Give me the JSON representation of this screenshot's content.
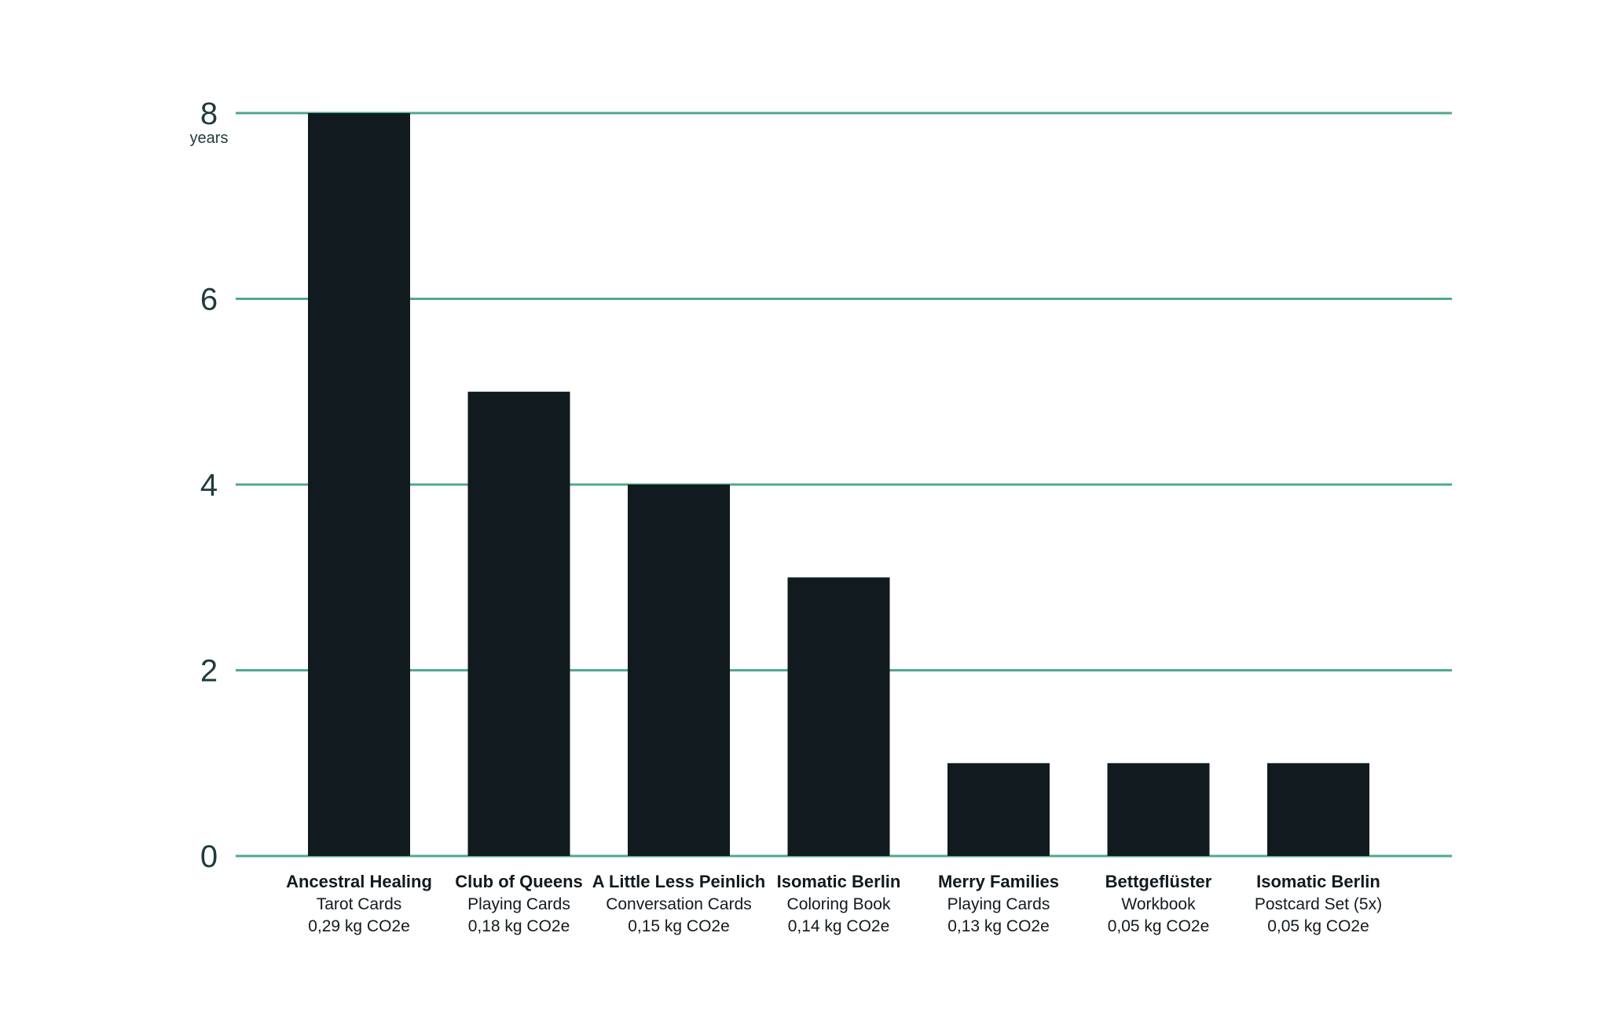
{
  "chart_data": {
    "type": "bar",
    "title": "",
    "xlabel": "",
    "ylabel": "",
    "y_unit": "years",
    "ylim": [
      0,
      8
    ],
    "yticks": [
      0,
      2,
      4,
      6,
      8
    ],
    "grid": true,
    "colors": {
      "bar": "#101a1f",
      "grid": "#4fa892",
      "text": "#1f3b3b"
    },
    "categories": [
      {
        "name": "Ancestral Healing",
        "sub": "Tarot Cards",
        "co2": "0,29 kg CO2e"
      },
      {
        "name": "Club of Queens",
        "sub": "Playing Cards",
        "co2": "0,18 kg CO2e"
      },
      {
        "name": "A Little Less Peinlich",
        "sub": "Conversation Cards",
        "co2": "0,15 kg CO2e"
      },
      {
        "name": "Isomatic Berlin",
        "sub": "Coloring Book",
        "co2": "0,14 kg CO2e"
      },
      {
        "name": "Merry Families",
        "sub": "Playing Cards",
        "co2": "0,13 kg CO2e"
      },
      {
        "name": "Bettgeflüster",
        "sub": "Workbook",
        "co2": "0,05 kg CO2e"
      },
      {
        "name": "Isomatic Berlin",
        "sub": "Postcard Set (5x)",
        "co2": "0,05 kg CO2e"
      }
    ],
    "values": [
      8,
      5,
      4,
      3,
      1,
      1,
      1
    ]
  }
}
